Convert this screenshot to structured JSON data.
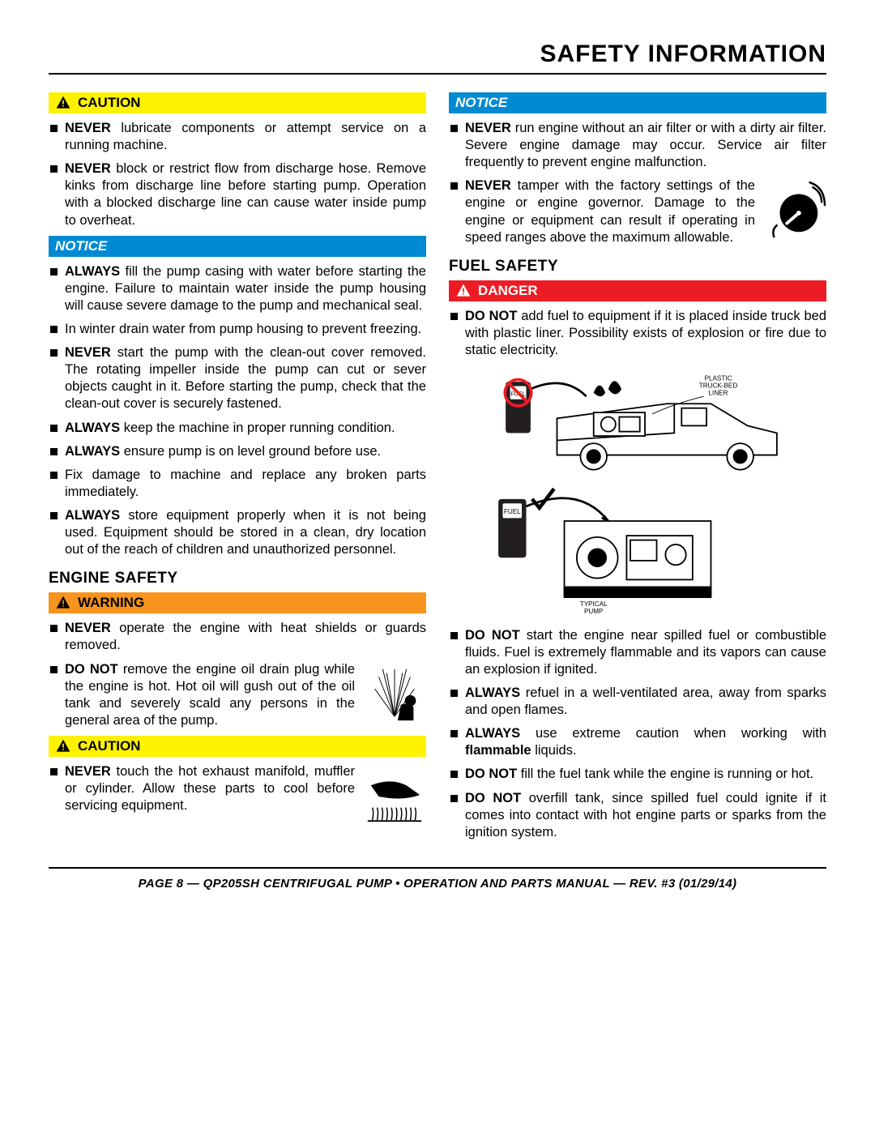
{
  "page_title": "SAFETY INFORMATION",
  "labels": {
    "caution": "CAUTION",
    "notice": "NOTICE",
    "warning": "WARNING",
    "danger": "DANGER"
  },
  "colors": {
    "caution_bg": "#fff200",
    "notice_bg": "#008ad1",
    "warning_bg": "#f7941d",
    "danger_bg": "#ed1c24"
  },
  "sections": {
    "engine_safety": "ENGINE SAFETY",
    "fuel_safety": "FUEL SAFETY"
  },
  "left": {
    "caution_items": [
      "<b>NEVER</b> lubricate components or attempt service on a running machine.",
      "<b>NEVER</b> block or restrict flow from discharge hose. Remove kinks from discharge line before starting pump. Operation with a blocked discharge line can cause water inside pump to overheat."
    ],
    "notice_items": [
      "<b>ALWAYS</b> fill the pump casing with water before starting the engine. Failure to maintain water inside the pump housing will cause severe damage to the pump and mechanical seal.",
      "In winter drain water from pump housing to prevent freezing.",
      "<b>NEVER</b> start the pump with the clean-out cover removed. The rotating impeller inside the pump can cut or sever objects caught in it. Before starting the pump, check that the clean-out cover is securely fastened.",
      "<b>ALWAYS</b> keep the machine in proper running condition.",
      "<b>ALWAYS</b> ensure pump is on level ground before use.",
      "Fix damage to machine and replace any broken parts immediately.",
      "<b>ALWAYS</b> store equipment properly when it is not being used. Equipment should be stored in a clean, dry location out of the reach of children and unauthorized personnel."
    ],
    "warning_items": [
      "<b>NEVER</b> operate the engine with heat shields or guards removed.",
      "<b>DO NOT</b> remove the engine oil drain plug while the engine is hot. Hot oil will gush out of the oil tank and severely scald any persons in the general area of the pump."
    ],
    "caution2_items": [
      "<b>NEVER</b> touch the hot exhaust manifold, muffler or cylinder. Allow these parts to cool before servicing equipment."
    ]
  },
  "right": {
    "notice_items": [
      "<b>NEVER</b> run engine without an air filter or with a dirty air filter. Severe engine damage may occur. Service air filter frequently to prevent engine malfunction.",
      "<b>NEVER</b> tamper with the factory settings of the engine or engine governor. Damage to the engine or equipment can result if operating in speed ranges above the maximum allowable."
    ],
    "danger_items": [
      "<b>DO NOT</b> add fuel to equipment if it is placed inside truck bed with plastic liner. Possibility exists of explosion or fire due to static electricity."
    ],
    "danger_items2": [
      "<b>DO NOT</b> start the engine near spilled fuel or combustible fluids. Fuel is extremely flammable and its vapors can cause an explosion if ignited.",
      "<b>ALWAYS</b> refuel in a well-ventilated area, away from sparks and open flames.",
      "<b>ALWAYS</b> use extreme caution when working with <b>flammable</b> liquids.",
      "<b>DO NOT</b> fill the fuel tank while the engine is running or hot.",
      "<b>DO NOT</b> overfill tank, since spilled fuel could ignite if it comes into contact with hot engine parts or sparks from the ignition system."
    ],
    "truck_labels": {
      "liner": "PLASTIC\nTRUCK-BED\nLINER",
      "pump": "TYPICAL\nPUMP"
    }
  },
  "footer": "PAGE 8 — QP205SH CENTRIFUGAL PUMP • OPERATION AND PARTS MANUAL — REV. #3 (01/29/14)"
}
